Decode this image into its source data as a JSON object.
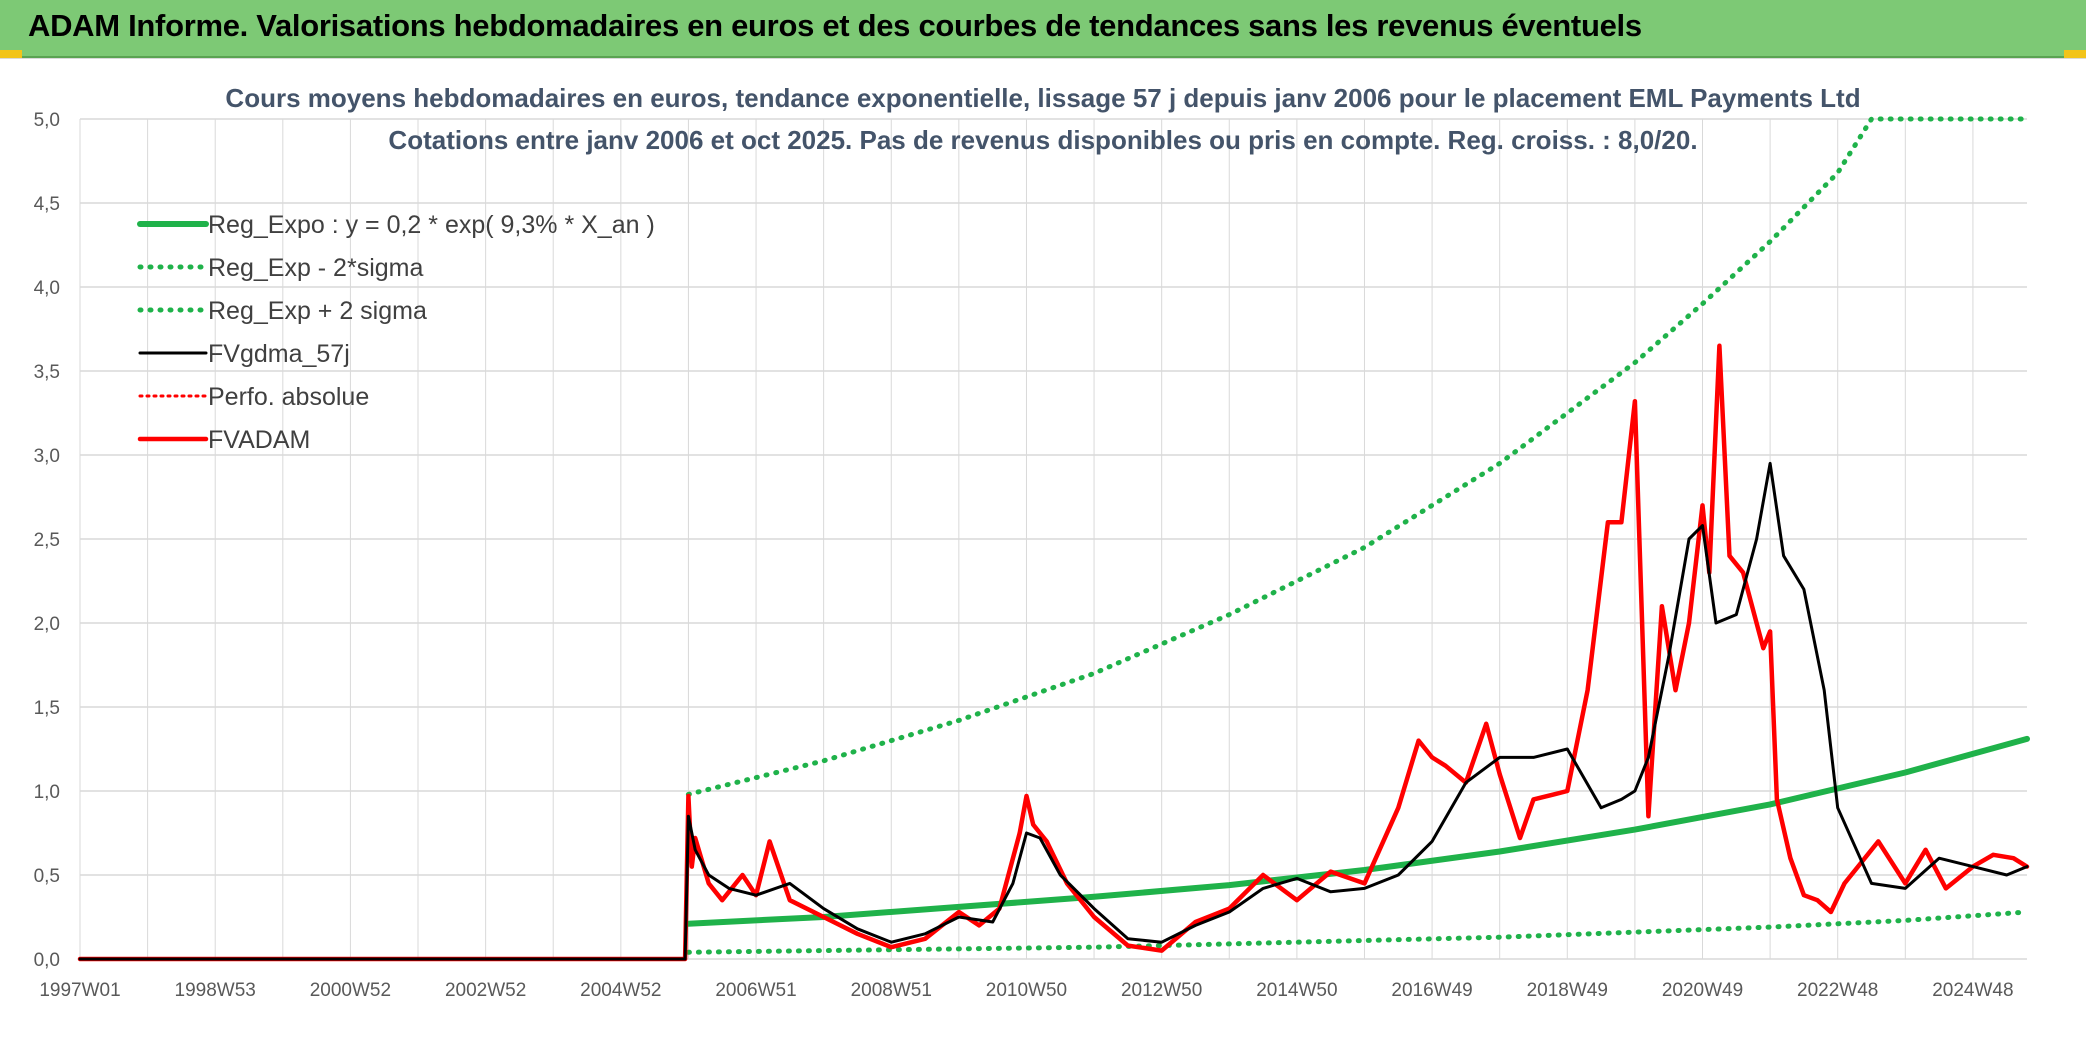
{
  "banner": {
    "title": "ADAM Informe. Valorisations hebdomadaires en euros et des courbes de tendances sans les revenus éventuels"
  },
  "colors": {
    "banner_bg": "#7dc975",
    "accent_yellow": "#f2c41a",
    "reg_green": "#1fb24a",
    "black_series": "#000000",
    "red_series": "#ff0000",
    "grid": "#d9d9d9",
    "subtitle": "#44546a"
  },
  "chart_data": {
    "type": "line",
    "title": "Cours moyens hebdomadaires en euros, tendance exponentielle, lissage 57 j depuis janv 2006 pour le placement EML Payments Ltd",
    "subtitle": "Cotations entre janv 2006 et oct 2025. Pas de revenus disponibles ou pris en compte. Reg. croiss. : 8,0/20.",
    "xlabel": "",
    "ylabel": "",
    "xlim": [
      1997.0,
      2025.8
    ],
    "ylim": [
      0,
      5
    ],
    "y_ticks": [
      "0,0",
      "0,5",
      "1,0",
      "1,5",
      "2,0",
      "2,5",
      "3,0",
      "3,5",
      "4,0",
      "4,5",
      "5,0"
    ],
    "x_ticks": [
      {
        "label": "1997W01",
        "x": 1997.0
      },
      {
        "label": "1998W53",
        "x": 1999.0
      },
      {
        "label": "2000W52",
        "x": 2001.0
      },
      {
        "label": "2002W52",
        "x": 2003.0
      },
      {
        "label": "2004W52",
        "x": 2005.0
      },
      {
        "label": "2006W51",
        "x": 2007.0
      },
      {
        "label": "2008W51",
        "x": 2009.0
      },
      {
        "label": "2010W50",
        "x": 2011.0
      },
      {
        "label": "2012W50",
        "x": 2013.0
      },
      {
        "label": "2014W50",
        "x": 2015.0
      },
      {
        "label": "2016W49",
        "x": 2017.0
      },
      {
        "label": "2018W49",
        "x": 2019.0
      },
      {
        "label": "2020W49",
        "x": 2021.0
      },
      {
        "label": "2022W48",
        "x": 2023.0
      },
      {
        "label": "2024W48",
        "x": 2025.0
      }
    ],
    "legend": [
      {
        "name": "Reg_Expo : y = 0,2 * exp( 9,3% *  X_an )",
        "style": "solid-green"
      },
      {
        "name": "Reg_Exp - 2*sigma",
        "style": "dotted-green"
      },
      {
        "name": "Reg_Exp + 2 sigma",
        "style": "dotted-green"
      },
      {
        "name": "FVgdma_57j",
        "style": "solid-black"
      },
      {
        "name": "Perfo. absolue",
        "style": "dotted-red"
      },
      {
        "name": "FVADAM",
        "style": "solid-red"
      }
    ],
    "series": [
      {
        "name": "Reg_Expo : y = 0,2 * exp( 9,3% *  X_an )",
        "x": [
          2006.0,
          2008.0,
          2010.0,
          2012.0,
          2014.0,
          2016.0,
          2018.0,
          2020.0,
          2022.0,
          2024.0,
          2025.8
        ],
        "values": [
          0.21,
          0.25,
          0.31,
          0.37,
          0.44,
          0.53,
          0.64,
          0.77,
          0.92,
          1.11,
          1.31
        ]
      },
      {
        "name": "Reg_Exp - 2*sigma",
        "x": [
          2006.0,
          2008.0,
          2010.0,
          2012.0,
          2014.0,
          2016.0,
          2018.0,
          2020.0,
          2022.0,
          2024.0,
          2025.8
        ],
        "values": [
          0.04,
          0.05,
          0.06,
          0.07,
          0.09,
          0.11,
          0.13,
          0.16,
          0.19,
          0.23,
          0.28
        ]
      },
      {
        "name": "Reg_Exp + 2 sigma",
        "x": [
          2006.0,
          2008.0,
          2010.0,
          2012.0,
          2014.0,
          2016.0,
          2018.0,
          2020.0,
          2021.0,
          2022.0,
          2023.0,
          2023.5,
          2024.0,
          2025.8
        ],
        "values": [
          0.98,
          1.18,
          1.42,
          1.7,
          2.05,
          2.45,
          2.95,
          3.55,
          3.9,
          4.27,
          4.68,
          5.0,
          5.0,
          5.0
        ]
      },
      {
        "name": "FVgdma_57j",
        "x": [
          1997.0,
          2005.95,
          2006.0,
          2006.1,
          2006.3,
          2006.6,
          2007.0,
          2007.5,
          2008.0,
          2008.5,
          2009.0,
          2009.5,
          2010.0,
          2010.5,
          2010.8,
          2011.0,
          2011.2,
          2011.5,
          2012.0,
          2012.5,
          2013.0,
          2013.5,
          2014.0,
          2014.5,
          2015.0,
          2015.5,
          2016.0,
          2016.5,
          2017.0,
          2017.5,
          2018.0,
          2018.5,
          2019.0,
          2019.5,
          2019.8,
          2020.0,
          2020.2,
          2020.5,
          2020.8,
          2021.0,
          2021.2,
          2021.5,
          2021.8,
          2022.0,
          2022.2,
          2022.5,
          2022.8,
          2023.0,
          2023.5,
          2024.0,
          2024.5,
          2025.0,
          2025.5,
          2025.8
        ],
        "values": [
          0.0,
          0.0,
          0.85,
          0.65,
          0.5,
          0.42,
          0.38,
          0.45,
          0.3,
          0.18,
          0.1,
          0.15,
          0.25,
          0.22,
          0.45,
          0.75,
          0.72,
          0.5,
          0.3,
          0.12,
          0.1,
          0.2,
          0.28,
          0.42,
          0.48,
          0.4,
          0.42,
          0.5,
          0.7,
          1.05,
          1.2,
          1.2,
          1.25,
          0.9,
          0.95,
          1.0,
          1.2,
          1.8,
          2.5,
          2.58,
          2.0,
          2.05,
          2.5,
          2.95,
          2.4,
          2.2,
          1.6,
          0.9,
          0.45,
          0.42,
          0.6,
          0.55,
          0.5,
          0.55
        ]
      },
      {
        "name": "FVADAM",
        "x": [
          1997.0,
          2005.95,
          2006.0,
          2006.05,
          2006.1,
          2006.3,
          2006.5,
          2006.8,
          2007.0,
          2007.2,
          2007.5,
          2008.0,
          2008.5,
          2009.0,
          2009.5,
          2010.0,
          2010.3,
          2010.6,
          2010.9,
          2011.0,
          2011.1,
          2011.3,
          2011.6,
          2012.0,
          2012.5,
          2013.0,
          2013.5,
          2014.0,
          2014.5,
          2015.0,
          2015.5,
          2016.0,
          2016.5,
          2016.8,
          2017.0,
          2017.2,
          2017.5,
          2017.8,
          2018.0,
          2018.3,
          2018.5,
          2018.8,
          2019.0,
          2019.3,
          2019.6,
          2019.8,
          2020.0,
          2020.2,
          2020.4,
          2020.6,
          2020.8,
          2021.0,
          2021.1,
          2021.25,
          2021.4,
          2021.6,
          2021.9,
          2022.0,
          2022.1,
          2022.3,
          2022.5,
          2022.7,
          2022.9,
          2023.1,
          2023.3,
          2023.6,
          2024.0,
          2024.3,
          2024.6,
          2025.0,
          2025.3,
          2025.6,
          2025.8
        ],
        "values": [
          0.0,
          0.0,
          0.97,
          0.55,
          0.72,
          0.45,
          0.35,
          0.5,
          0.38,
          0.7,
          0.35,
          0.25,
          0.15,
          0.07,
          0.12,
          0.28,
          0.2,
          0.3,
          0.75,
          0.97,
          0.8,
          0.7,
          0.45,
          0.25,
          0.08,
          0.05,
          0.22,
          0.3,
          0.5,
          0.35,
          0.52,
          0.45,
          0.9,
          1.3,
          1.2,
          1.15,
          1.05,
          1.4,
          1.1,
          0.72,
          0.95,
          0.98,
          1.0,
          1.6,
          2.6,
          2.6,
          3.32,
          0.85,
          2.1,
          1.6,
          2.0,
          2.7,
          2.3,
          3.65,
          2.4,
          2.3,
          1.85,
          1.95,
          0.95,
          0.6,
          0.38,
          0.35,
          0.28,
          0.45,
          0.55,
          0.7,
          0.45,
          0.65,
          0.42,
          0.55,
          0.62,
          0.6,
          0.55
        ]
      }
    ]
  }
}
